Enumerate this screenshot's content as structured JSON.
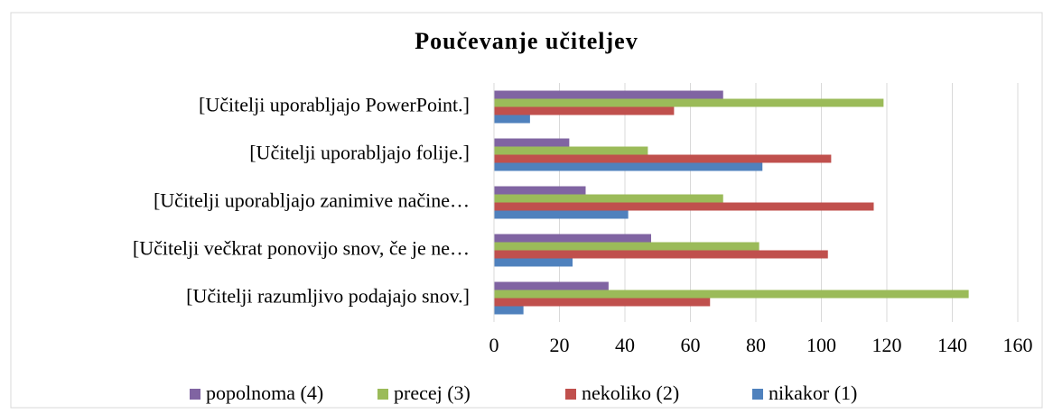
{
  "chart_data": {
    "type": "hbar",
    "title": "Poučevanje učiteljev",
    "categories": [
      "[Učitelji uporabljajo PowerPoint.]",
      "[Učitelji uporabljajo folije.]",
      "[Učitelji uporabljajo zanimive načine…",
      "[Učitelji večkrat ponovijo snov, če je ne…",
      "[Učitelji razumljivo podajajo snov.]"
    ],
    "series": [
      {
        "name": "popolnoma (4)",
        "color": "#8064a2",
        "values": [
          70,
          23,
          28,
          48,
          35
        ]
      },
      {
        "name": "precej (3)",
        "color": "#9bbb59",
        "values": [
          119,
          47,
          70,
          81,
          145
        ]
      },
      {
        "name": "nekoliko (2)",
        "color": "#c0504d",
        "values": [
          55,
          103,
          116,
          102,
          66
        ]
      },
      {
        "name": "nikakor (1)",
        "color": "#4f81bd",
        "values": [
          11,
          82,
          41,
          24,
          9
        ]
      }
    ],
    "xlim": [
      0,
      160
    ],
    "xticks": [
      0,
      20,
      40,
      60,
      80,
      100,
      120,
      140,
      160
    ],
    "grid": true,
    "legend": "bottom"
  }
}
